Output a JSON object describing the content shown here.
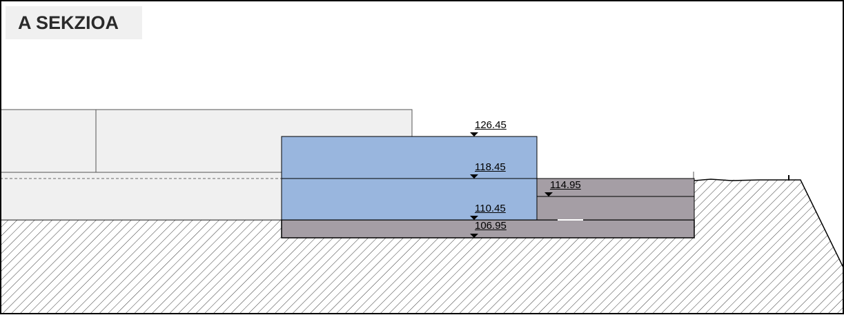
{
  "title": "A SEKZIOA",
  "levels": {
    "l1": "126.45",
    "l2": "118.45",
    "l3": "114.95",
    "l4": "110.45",
    "l5": "106.95"
  },
  "colors": {
    "water": "#99b6de",
    "excavation": "#a59ea5",
    "structure": "#f0f0f0",
    "hatch": "#333333"
  }
}
